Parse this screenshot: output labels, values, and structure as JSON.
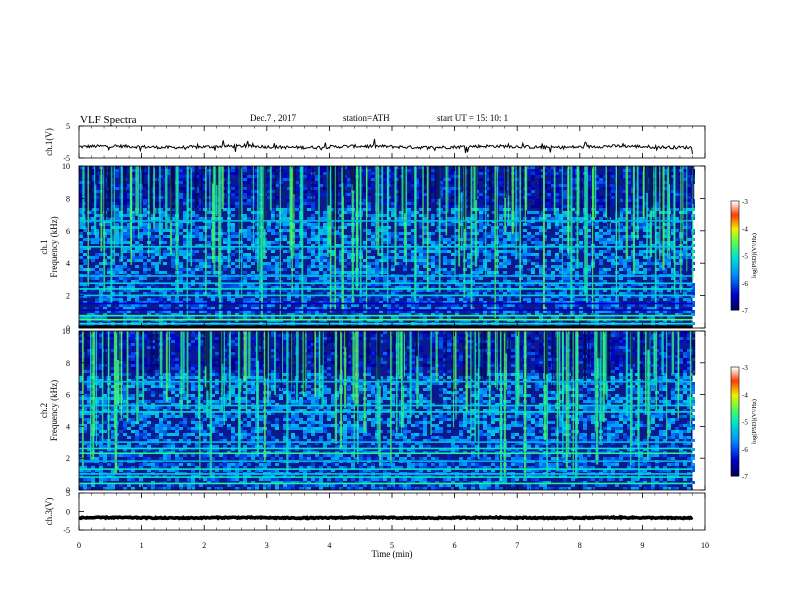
{
  "header": {
    "title": "VLF  Spectra",
    "date": "Dec.7  , 2017",
    "station": "station=ATH",
    "start": "start  UT  =    15: 10: 1"
  },
  "chart_data": [
    {
      "type": "line",
      "panel": "ch1-waveform",
      "ylabel": "ch.1(V)",
      "y_ticks": [
        "5",
        "-5"
      ],
      "ylim": [
        -5,
        5
      ],
      "xlim": [
        0,
        10
      ],
      "data_end_min": 9.8,
      "level_v": -1.5,
      "noise_v": 0.5
    },
    {
      "type": "heatmap",
      "panel": "ch1-spectrogram",
      "ylabel": "ch.1\nFrequency  (kHz)",
      "y_ticks": [
        "0",
        "2",
        "4",
        "6",
        "8",
        "10"
      ],
      "ylim": [
        0,
        10
      ],
      "xlim": [
        0,
        10
      ],
      "colorbar": {
        "label": "log(PSD)(V²/Hz)",
        "ticks": [
          "-3",
          "-4",
          "-5",
          "-6",
          "-7"
        ],
        "range": [
          -7,
          -3
        ]
      },
      "bands": [
        {
          "khz": 0.1,
          "level": 0.0,
          "mode": "black"
        },
        {
          "khz": 0.25,
          "level": 0.5
        },
        {
          "khz": 0.5,
          "level": 0.62
        },
        {
          "khz": 0.75,
          "level": 0.55
        },
        {
          "khz": 1.1,
          "level": 0.15
        },
        {
          "khz": 1.5,
          "level": 0.15
        },
        {
          "khz": 2.0,
          "level": 0.45
        },
        {
          "khz": 2.4,
          "level": 0.5
        },
        {
          "khz": 2.75,
          "level": 0.45
        },
        {
          "khz": 3.2,
          "level": 0.42
        },
        {
          "khz": 5.0,
          "level": 0.45
        },
        {
          "khz": 6.6,
          "level": 0.42
        }
      ]
    },
    {
      "type": "heatmap",
      "panel": "ch2-spectrogram",
      "ylabel": "ch.2\nFrequency  (kHz)",
      "y_ticks": [
        "0",
        "2",
        "4",
        "6",
        "8",
        "10"
      ],
      "ylim": [
        0,
        10
      ],
      "xlim": [
        0,
        10
      ],
      "colorbar": {
        "label": "log(PSD)(V²/Hz)",
        "ticks": [
          "-3",
          "-4",
          "-5",
          "-6",
          "-7"
        ],
        "range": [
          -7,
          -3
        ]
      },
      "bands": [
        {
          "khz": 0.4,
          "level": 0.55
        },
        {
          "khz": 0.8,
          "level": 0.5
        },
        {
          "khz": 1.0,
          "level": 0.45
        },
        {
          "khz": 1.3,
          "level": 0.5
        },
        {
          "khz": 1.8,
          "level": 0.4
        },
        {
          "khz": 2.3,
          "level": 0.55
        },
        {
          "khz": 2.6,
          "level": 0.5
        },
        {
          "khz": 3.0,
          "level": 0.42
        },
        {
          "khz": 4.9,
          "level": 0.48
        },
        {
          "khz": 5.3,
          "level": 0.45
        },
        {
          "khz": 6.8,
          "level": 0.42
        }
      ]
    },
    {
      "type": "line",
      "panel": "ch3-waveform",
      "ylabel": "ch.3(V)",
      "y_ticks": [
        "5",
        "0",
        "-5"
      ],
      "ylim": [
        -5,
        5
      ],
      "xlim": [
        0,
        10
      ],
      "data_end_min": 9.8,
      "level_v": -1.7,
      "noise_v": 0.15
    }
  ],
  "x_axis": {
    "label": "Time  (min)",
    "ticks": [
      "0",
      "1",
      "2",
      "3",
      "4",
      "5",
      "6",
      "7",
      "8",
      "9",
      "10"
    ],
    "range": [
      0,
      10
    ]
  }
}
